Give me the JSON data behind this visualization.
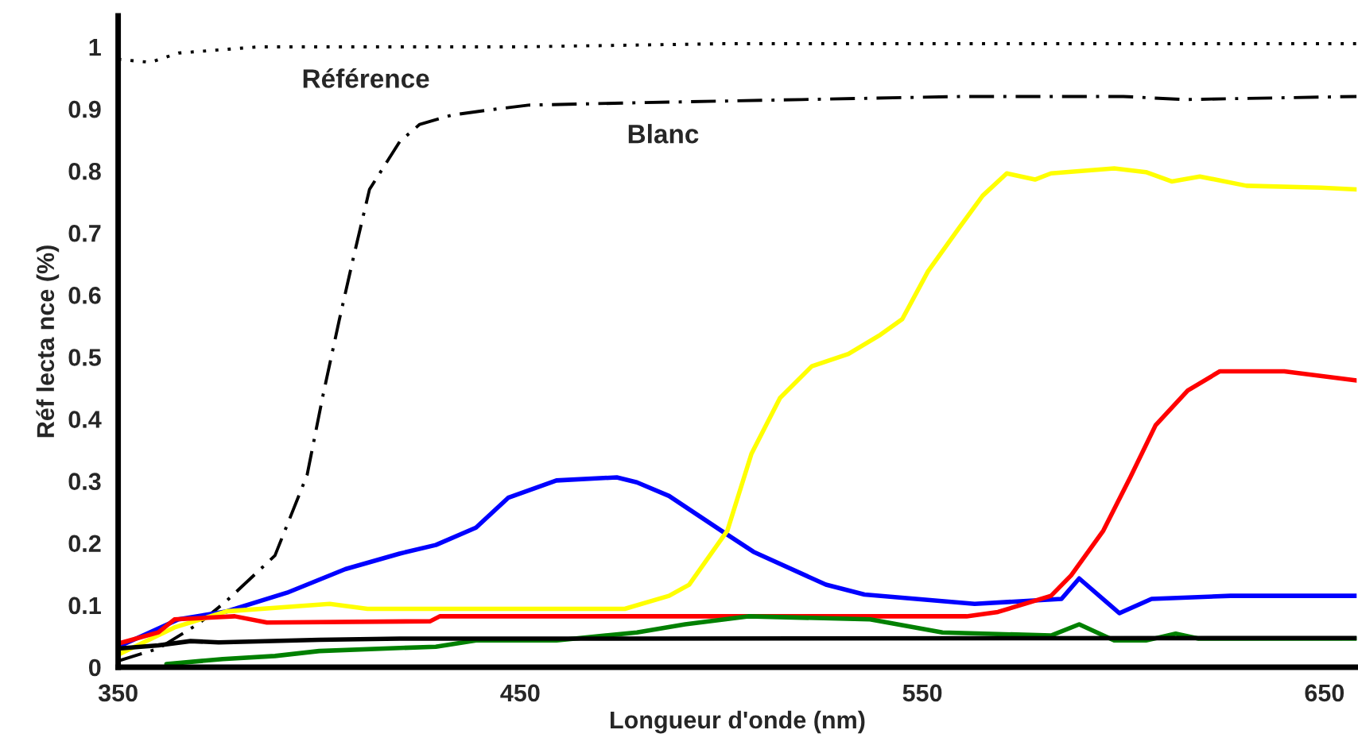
{
  "chart_data": {
    "type": "line",
    "xlabel": "Longueur d'onde (nm)",
    "ylabel": "Réf lecta nce (%)",
    "xlim": [
      350,
      658
    ],
    "xticks": [
      350,
      450,
      550,
      650
    ],
    "ylim": [
      0,
      1.05
    ],
    "yticks": [
      0,
      0.1,
      0.2,
      0.3,
      0.4,
      0.5,
      0.6,
      0.7,
      0.8,
      0.9,
      1
    ],
    "grid": false,
    "legend": false,
    "series": [
      {
        "name": "Référence",
        "color": "#000000",
        "line_style": "dotted",
        "x": [
          350,
          358,
          365,
          385,
          450,
          500,
          658
        ],
        "values": [
          0.98,
          0.975,
          0.99,
          1.0,
          1.0,
          1.005,
          1.005
        ]
      },
      {
        "name": "Blanc",
        "color": "#000000",
        "line_style": "dashed",
        "x": [
          350,
          360,
          370,
          377,
          389,
          397,
          401,
          405,
          408.5,
          412.5,
          420,
          425,
          433,
          442,
          452,
          480,
          520,
          560,
          600,
          615,
          658
        ],
        "values": [
          0.01,
          0.03,
          0.07,
          0.107,
          0.18,
          0.31,
          0.44,
          0.56,
          0.66,
          0.77,
          0.847,
          0.875,
          0.89,
          0.898,
          0.906,
          0.91,
          0.915,
          0.92,
          0.92,
          0.915,
          0.92
        ]
      },
      {
        "color": "#0000ff",
        "line_style": "solid",
        "x": [
          350,
          365,
          377,
          392,
          406.5,
          420,
          429,
          439,
          447,
          459,
          474,
          479,
          487,
          500,
          508,
          526,
          535.6,
          563,
          584.6,
          589,
          599,
          607,
          626.6,
          658
        ],
        "values": [
          0.033,
          0.077,
          0.09,
          0.12,
          0.158,
          0.183,
          0.197,
          0.225,
          0.273,
          0.301,
          0.306,
          0.298,
          0.276,
          0.22,
          0.186,
          0.133,
          0.117,
          0.102,
          0.11,
          0.143,
          0.087,
          0.11,
          0.115,
          0.115
        ]
      },
      {
        "color": "#ffff00",
        "line_style": "solid",
        "x": [
          350,
          364,
          377,
          402.6,
          412,
          476,
          487,
          492,
          501.5,
          507.5,
          514.6,
          522.5,
          531.6,
          539.6,
          545,
          551.4,
          559,
          565,
          571,
          578,
          582,
          597.7,
          605.6,
          612,
          619,
          630.6,
          649,
          658
        ],
        "values": [
          0.02,
          0.064,
          0.09,
          0.102,
          0.094,
          0.094,
          0.115,
          0.133,
          0.22,
          0.344,
          0.434,
          0.485,
          0.505,
          0.536,
          0.561,
          0.638,
          0.707,
          0.76,
          0.796,
          0.786,
          0.796,
          0.804,
          0.798,
          0.783,
          0.791,
          0.776,
          0.773,
          0.77
        ]
      },
      {
        "color": "#ff0000",
        "line_style": "solid",
        "x": [
          350,
          360,
          364,
          379,
          387,
          427.6,
          430,
          561,
          568.8,
          582,
          587,
          595,
          601.7,
          608,
          616,
          624,
          640,
          658
        ],
        "values": [
          0.038,
          0.056,
          0.077,
          0.082,
          0.072,
          0.074,
          0.082,
          0.082,
          0.089,
          0.115,
          0.148,
          0.22,
          0.306,
          0.39,
          0.446,
          0.477,
          0.477,
          0.462
        ]
      },
      {
        "color": "#008000",
        "line_style": "solid",
        "x": [
          362,
          376,
          389,
          400,
          429,
          439,
          459,
          479,
          491,
          506.7,
          537,
          555,
          582,
          589,
          597.7,
          605.6,
          613,
          618.7,
          658
        ],
        "values": [
          0.005,
          0.013,
          0.018,
          0.026,
          0.033,
          0.043,
          0.043,
          0.056,
          0.069,
          0.082,
          0.077,
          0.056,
          0.051,
          0.069,
          0.043,
          0.043,
          0.054,
          0.046,
          0.046
        ]
      },
      {
        "color": "#000000",
        "line_style": "solid",
        "x": [
          350,
          360,
          368,
          375,
          400,
          420,
          450,
          658
        ],
        "values": [
          0.03,
          0.035,
          0.042,
          0.04,
          0.044,
          0.046,
          0.046,
          0.047
        ]
      }
    ]
  }
}
